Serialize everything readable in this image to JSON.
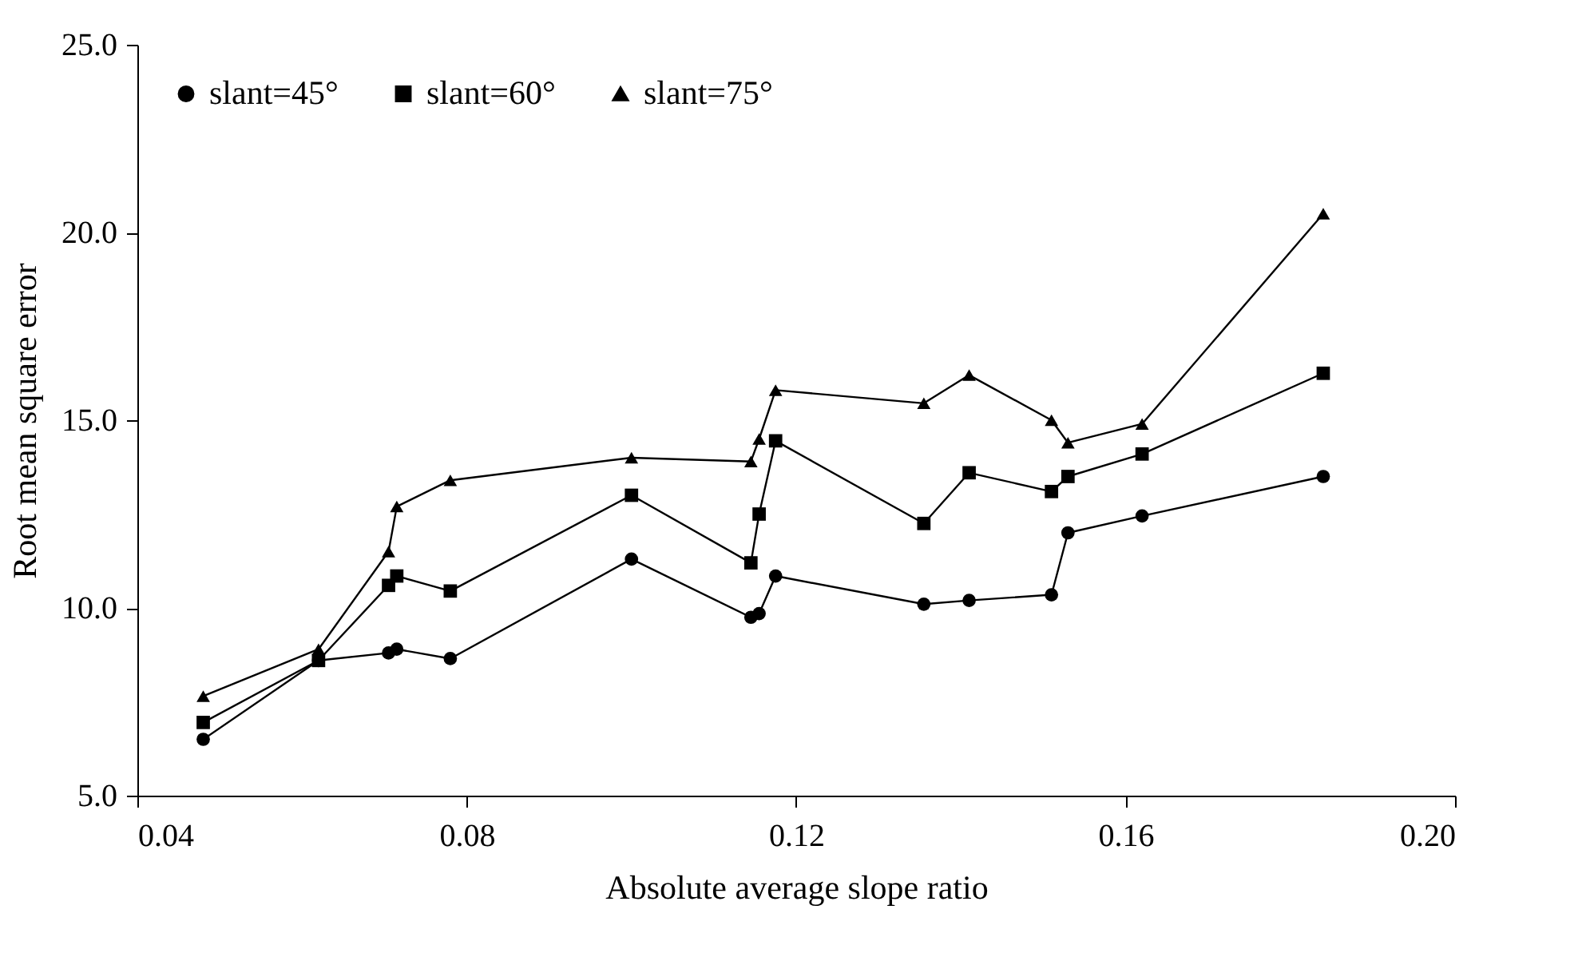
{
  "chart_data": {
    "type": "line",
    "xlabel": "Absolute average slope ratio",
    "ylabel": "Root mean square error",
    "x": [
      0.048,
      0.062,
      0.0705,
      0.0715,
      0.078,
      0.1,
      0.1145,
      0.1155,
      0.1175,
      0.1355,
      0.141,
      0.151,
      0.153,
      0.162,
      0.184
    ],
    "series": [
      {
        "name": "slant=45°",
        "color": "#000000",
        "marker": "circle",
        "values": [
          6.5,
          8.6,
          8.8,
          8.9,
          8.65,
          11.3,
          9.75,
          9.85,
          10.85,
          10.1,
          10.2,
          10.35,
          12.0,
          12.45,
          13.5
        ]
      },
      {
        "name": "slant=60°",
        "color": "#000000",
        "marker": "square",
        "values": [
          6.95,
          8.6,
          10.6,
          10.85,
          10.45,
          13.0,
          11.2,
          12.5,
          14.45,
          12.25,
          13.6,
          13.1,
          13.5,
          14.1,
          16.25
        ]
      },
      {
        "name": "slant=75°",
        "color": "#000000",
        "marker": "triangle",
        "values": [
          7.65,
          8.9,
          11.5,
          12.7,
          13.4,
          14.0,
          13.9,
          14.5,
          15.8,
          15.45,
          16.2,
          15.0,
          14.4,
          14.9,
          20.5
        ]
      }
    ],
    "xlim": [
      0.04,
      0.2
    ],
    "xticks": [
      {
        "value": 0.04,
        "label": "0.04"
      },
      {
        "value": 0.08,
        "label": "0.08"
      },
      {
        "value": 0.12,
        "label": "0.12"
      },
      {
        "value": 0.16,
        "label": "0.16"
      },
      {
        "value": 0.2,
        "label": "0.20"
      }
    ],
    "ylim": [
      5,
      25
    ],
    "yticks": [
      {
        "value": 5,
        "label": "5.0"
      },
      {
        "value": 10,
        "label": "10.0"
      },
      {
        "value": 15,
        "label": "15.0"
      },
      {
        "value": 20,
        "label": "20.0"
      },
      {
        "value": 25,
        "label": "25.0"
      }
    ],
    "grid": false,
    "legend": "top left",
    "line_style": "solid"
  }
}
